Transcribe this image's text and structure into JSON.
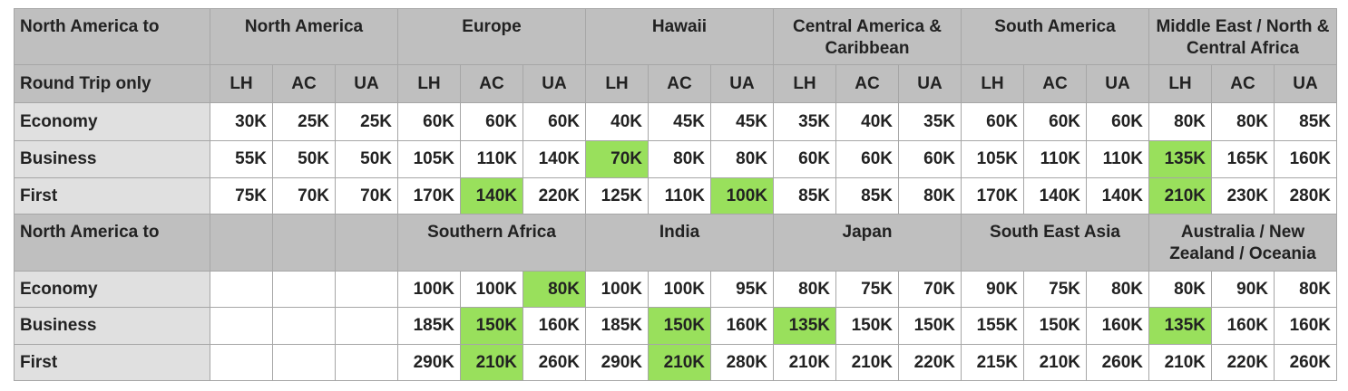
{
  "table1": {
    "corner_label": "North America to",
    "subheader_label": "Round Trip only",
    "regions": [
      "North America",
      "Europe",
      "Hawaii",
      "Central America & Caribbean",
      "South America",
      "Middle East / North & Central Africa"
    ],
    "airlines": [
      "LH",
      "AC",
      "UA",
      "LH",
      "AC",
      "UA",
      "LH",
      "AC",
      "UA",
      "LH",
      "AC",
      "UA",
      "LH",
      "AC",
      "UA",
      "LH",
      "AC",
      "UA"
    ],
    "rows": [
      {
        "label": "Economy",
        "values": [
          "30K",
          "25K",
          "25K",
          "60K",
          "60K",
          "60K",
          "40K",
          "45K",
          "45K",
          "35K",
          "40K",
          "35K",
          "60K",
          "60K",
          "60K",
          "80K",
          "80K",
          "85K"
        ]
      },
      {
        "label": "Business",
        "values": [
          "55K",
          "50K",
          "50K",
          "105K",
          "110K",
          "140K",
          "70K",
          "80K",
          "80K",
          "60K",
          "60K",
          "60K",
          "105K",
          "110K",
          "110K",
          "135K",
          "165K",
          "160K"
        ]
      },
      {
        "label": "First",
        "values": [
          "75K",
          "70K",
          "70K",
          "170K",
          "140K",
          "220K",
          "125K",
          "110K",
          "100K",
          "85K",
          "85K",
          "80K",
          "170K",
          "140K",
          "140K",
          "210K",
          "230K",
          "280K"
        ]
      }
    ]
  },
  "table2": {
    "corner_label": "North America to",
    "regions": [
      "Southern Africa",
      "India",
      "Japan",
      "South East Asia",
      "Australia / New Zealand / Oceania"
    ],
    "rows": [
      {
        "label": "Economy",
        "values": [
          "100K",
          "100K",
          "80K",
          "100K",
          "100K",
          "95K",
          "80K",
          "75K",
          "70K",
          "90K",
          "75K",
          "80K",
          "80K",
          "90K",
          "80K"
        ]
      },
      {
        "label": "Business",
        "values": [
          "185K",
          "150K",
          "160K",
          "185K",
          "150K",
          "160K",
          "135K",
          "150K",
          "150K",
          "155K",
          "150K",
          "160K",
          "135K",
          "160K",
          "160K"
        ]
      },
      {
        "label": "First",
        "values": [
          "290K",
          "210K",
          "260K",
          "290K",
          "210K",
          "280K",
          "210K",
          "210K",
          "220K",
          "215K",
          "210K",
          "260K",
          "210K",
          "220K",
          "260K"
        ]
      }
    ]
  },
  "colors": {
    "header_bg": "#bfbfbf",
    "label_bg": "#e0e0e0",
    "highlight": "#99e05c"
  }
}
